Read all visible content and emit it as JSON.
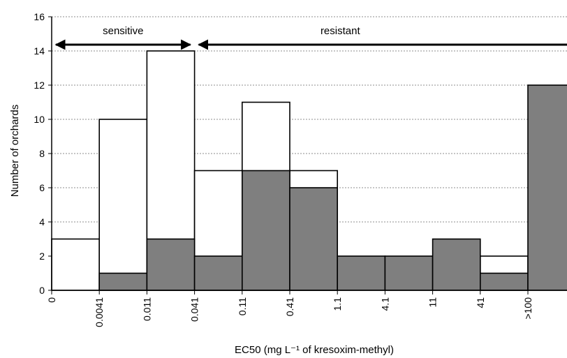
{
  "chart_data": {
    "type": "bar",
    "categories": [
      "0",
      "0.0041",
      "0.011",
      "0.041",
      "0.11",
      "0.41",
      "1.1",
      "4.1",
      "11",
      "41",
      ">100"
    ],
    "bins": 11,
    "series": [
      {
        "values": [
          3,
          10,
          14,
          7,
          11,
          7,
          0,
          0,
          0,
          2,
          0
        ],
        "color": "#ffffff"
      },
      {
        "values": [
          0,
          1,
          3,
          2,
          7,
          6,
          2,
          2,
          3,
          1,
          12
        ],
        "color": "#7f7f7f"
      }
    ],
    "xlabel": "EC50 (mg L⁻¹ of kresoxim-methyl)",
    "ylabel": "Number of orchards",
    "ylim": [
      0,
      16
    ],
    "yticks": [
      0,
      2,
      4,
      6,
      8,
      10,
      12,
      14,
      16
    ],
    "grid": true,
    "annotations": [
      {
        "text": "sensitive",
        "from_bin": 0,
        "to_bin": 3
      },
      {
        "text": "resistant",
        "from_bin": 3,
        "to_bin": 11
      }
    ]
  }
}
